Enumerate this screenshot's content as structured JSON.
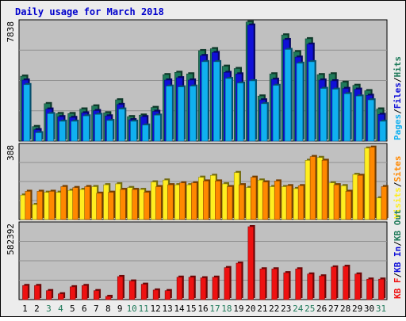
{
  "colors": {
    "background": "#ececec",
    "plot_bg": "#c0c0c0",
    "title": "#0000cc",
    "hits": "#1f7a5a",
    "files": "#1010d8",
    "pages": "#10b0f0",
    "visits": "#ffee20",
    "sites": "#ff8800",
    "kb_out": "#1f7a5a",
    "kb_in": "#1010d8",
    "kb_f": "#ee1111",
    "weekend": "#1f7a5a",
    "day_text": "#000000"
  },
  "chart_data": [
    {
      "type": "bar",
      "title": "Daily usage for March 2018",
      "ymax_label": "7838",
      "ylim": [
        0,
        7838
      ],
      "grid": true,
      "legend": [
        {
          "name": "Pages",
          "color": "#10b0f0"
        },
        {
          "name": "Files",
          "color": "#1010d8"
        },
        {
          "name": "Hits",
          "color": "#1f7a5a"
        }
      ],
      "categories": [
        "1",
        "2",
        "3",
        "4",
        "5",
        "6",
        "7",
        "8",
        "9",
        "10",
        "11",
        "12",
        "13",
        "14",
        "15",
        "16",
        "17",
        "18",
        "19",
        "20",
        "21",
        "22",
        "23",
        "24",
        "25",
        "26",
        "27",
        "28",
        "29",
        "30",
        "31"
      ],
      "weekend_days": [
        "3",
        "4",
        "10",
        "11",
        "17",
        "18",
        "24",
        "25",
        "31"
      ],
      "series": [
        {
          "name": "Hits",
          "values": [
            4250,
            950,
            2450,
            1800,
            1800,
            2100,
            2300,
            1850,
            2700,
            1600,
            1700,
            2200,
            4350,
            4500,
            4400,
            5920,
            6050,
            4900,
            4750,
            7800,
            2950,
            4400,
            6950,
            5850,
            6700,
            4350,
            4400,
            3850,
            3650,
            3300,
            2100
          ]
        },
        {
          "name": "Files",
          "values": [
            4100,
            850,
            2200,
            1700,
            1650,
            1950,
            2100,
            1750,
            2500,
            1500,
            1700,
            2050,
            4100,
            4250,
            4100,
            5700,
            5900,
            4600,
            4500,
            7700,
            2800,
            4150,
            6750,
            5600,
            6450,
            4100,
            4050,
            3550,
            3500,
            3100,
            1850
          ]
        },
        {
          "name": "Pages",
          "values": [
            3800,
            650,
            1900,
            1400,
            1400,
            1750,
            1850,
            1450,
            2200,
            1400,
            1150,
            1800,
            3700,
            3650,
            3700,
            5300,
            5300,
            4200,
            3900,
            4050,
            2550,
            3750,
            6100,
            5200,
            5300,
            3550,
            3500,
            3200,
            3050,
            2800,
            1400
          ]
        }
      ]
    },
    {
      "type": "bar",
      "ymax_label": "388",
      "ylim": [
        0,
        388
      ],
      "grid": true,
      "legend": [
        {
          "name": "Visits",
          "color": "#ffee20"
        },
        {
          "name": "Sites",
          "color": "#ff8800"
        }
      ],
      "categories": [
        "1",
        "2",
        "3",
        "4",
        "5",
        "6",
        "7",
        "8",
        "9",
        "10",
        "11",
        "12",
        "13",
        "14",
        "15",
        "16",
        "17",
        "18",
        "19",
        "20",
        "21",
        "22",
        "23",
        "24",
        "25",
        "26",
        "27",
        "28",
        "29",
        "30",
        "31"
      ],
      "series": [
        {
          "name": "Visits",
          "values": [
            130,
            80,
            145,
            145,
            155,
            160,
            175,
            185,
            190,
            170,
            160,
            200,
            210,
            185,
            185,
            225,
            235,
            190,
            250,
            170,
            210,
            175,
            175,
            165,
            315,
            330,
            195,
            180,
            240,
            380,
            115
          ]
        },
        {
          "name": "Sites",
          "values": [
            150,
            150,
            150,
            175,
            170,
            175,
            140,
            145,
            160,
            160,
            145,
            175,
            185,
            195,
            195,
            205,
            205,
            175,
            185,
            225,
            200,
            205,
            180,
            180,
            335,
            315,
            185,
            150,
            235,
            385,
            175
          ]
        }
      ]
    },
    {
      "type": "bar",
      "ymax_label": "582392",
      "ylim": [
        0,
        582392
      ],
      "grid": true,
      "legend": [
        {
          "name": "KB F",
          "color": "#ee1111"
        },
        {
          "name": "KB In",
          "color": "#1010d8"
        },
        {
          "name": "KB Out",
          "color": "#1f7a5a"
        }
      ],
      "categories": [
        "1",
        "2",
        "3",
        "4",
        "5",
        "6",
        "7",
        "8",
        "9",
        "10",
        "11",
        "12",
        "13",
        "14",
        "15",
        "16",
        "17",
        "18",
        "19",
        "20",
        "21",
        "22",
        "23",
        "24",
        "25",
        "26",
        "27",
        "28",
        "29",
        "30",
        "31"
      ],
      "series": [
        {
          "name": "KB F",
          "values": [
            110000,
            110000,
            70000,
            45000,
            100000,
            110000,
            70000,
            25000,
            180000,
            145000,
            120000,
            75000,
            70000,
            175000,
            175000,
            170000,
            175000,
            250000,
            285000,
            570000,
            240000,
            240000,
            210000,
            240000,
            200000,
            185000,
            255000,
            260000,
            200000,
            160000,
            160000
          ]
        }
      ]
    }
  ]
}
